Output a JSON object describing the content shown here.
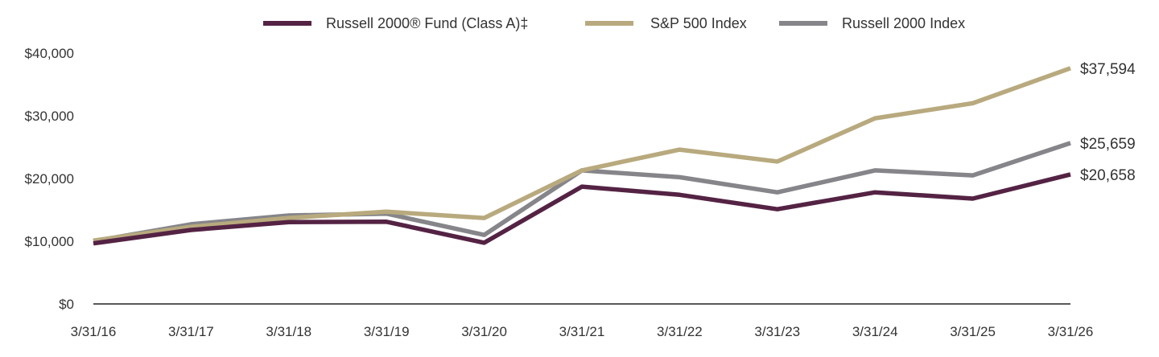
{
  "chart_data": {
    "type": "line",
    "categories": [
      "3/31/16",
      "3/31/17",
      "3/31/18",
      "3/31/19",
      "3/31/20",
      "3/31/21",
      "3/31/22",
      "3/31/23",
      "3/31/24",
      "3/31/25",
      "3/31/26"
    ],
    "y_ticks": [
      "$0",
      "$10,000",
      "$20,000",
      "$30,000",
      "$40,000"
    ],
    "y_tick_values": [
      0,
      10000,
      20000,
      30000,
      40000
    ],
    "ylim": [
      0,
      40000
    ],
    "grid": false,
    "legend_position": "top",
    "series": [
      {
        "name": "Russell 2000® Fund (Class A)‡",
        "color": "#542344",
        "values": [
          9650,
          11800,
          13050,
          13100,
          9750,
          18700,
          17400,
          15100,
          17800,
          16800,
          20658
        ],
        "end_label": "$20,658"
      },
      {
        "name": "S&P 500 Index",
        "color": "#b8aa7e",
        "values": [
          10100,
          12300,
          13700,
          14700,
          13700,
          21300,
          24600,
          22700,
          29600,
          32000,
          37594
        ],
        "end_label": "$37,594"
      },
      {
        "name": "Russell 2000 Index",
        "color": "#85858a",
        "values": [
          10000,
          12700,
          14100,
          14400,
          11000,
          21300,
          20200,
          17800,
          21300,
          20500,
          25659
        ],
        "end_label": "$25,659"
      }
    ]
  }
}
